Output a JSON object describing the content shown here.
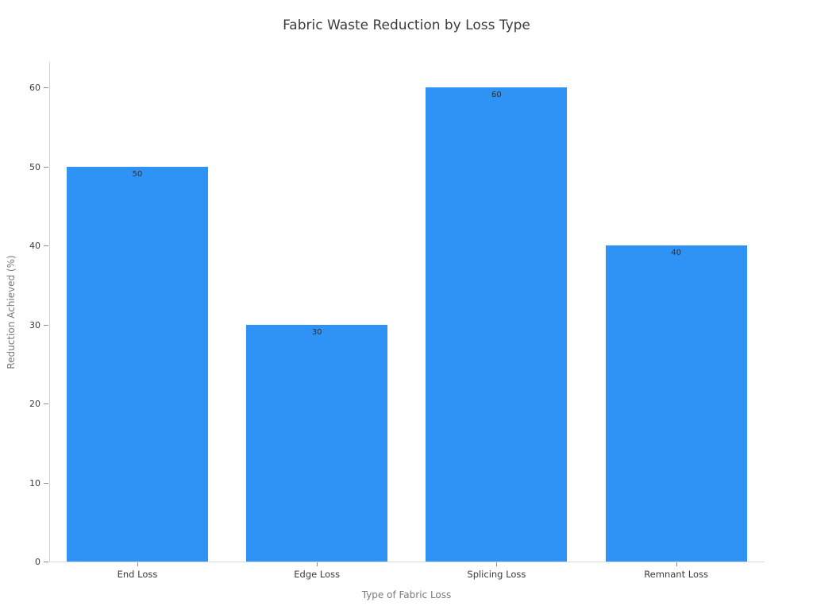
{
  "chart_data": {
    "type": "bar",
    "title": "Fabric Waste Reduction by Loss Type",
    "xlabel": "Type of Fabric Loss",
    "ylabel": "Reduction Achieved (%)",
    "categories": [
      "End Loss",
      "Edge Loss",
      "Splicing Loss",
      "Remnant Loss"
    ],
    "values": [
      50,
      30,
      60,
      40
    ],
    "bar_labels": [
      "50",
      "30",
      "60",
      "40"
    ],
    "ylim": [
      0,
      60
    ],
    "ytick_step": 10,
    "yticks": [
      0,
      10,
      20,
      30,
      40,
      50,
      60
    ],
    "grid": false,
    "legend": "none",
    "bar_color": "#2E93F5"
  },
  "colors": {
    "background": "#ffffff",
    "bar": "#2E93F5",
    "title_text": "#3b3b3b",
    "tick_text": "#3b3b3b",
    "axis_title_text": "#7a7a7a",
    "spine": "#d4d4d4",
    "tick_mark": "#8c8c8c"
  }
}
